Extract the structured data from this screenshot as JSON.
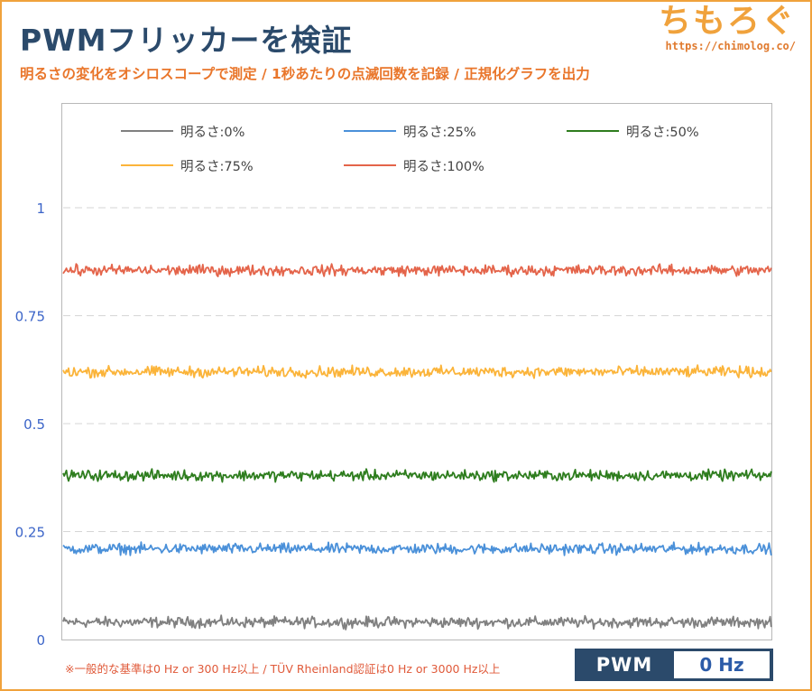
{
  "header": {
    "title": "PWMフリッカーを検証",
    "subtitle": "明るさの変化をオシロスコープで測定 / 1秒あたりの点滅回数を記録 / 正規化グラフを出力"
  },
  "brand": {
    "name": "ちもろぐ",
    "url": "https://chimolog.co/"
  },
  "footnote": "※一般的な基準は0 Hz or 300 Hz以上 / TÜV Rheinland認証は0 Hz or 3000 Hz以上",
  "badge": {
    "label": "PWM",
    "value": "0 Hz"
  },
  "colors": {
    "accent": "#f0a23c",
    "title": "#2b4a6b",
    "subtitle": "#e9762b"
  },
  "chart_data": {
    "type": "line",
    "title": "",
    "xlabel": "",
    "ylabel": "",
    "ylim": [
      0,
      1.1
    ],
    "yticks": [
      0,
      0.25,
      0.5,
      0.75,
      1
    ],
    "ytick_labels": [
      "0",
      "0.25",
      "0.5",
      "0.75",
      "1"
    ],
    "grid": "horizontal dashed",
    "legend_position": "top",
    "series": [
      {
        "name": "明るさ:0%",
        "color": "#808080",
        "level": 0.04,
        "noise": 0.006
      },
      {
        "name": "明るさ:25%",
        "color": "#4a90d9",
        "level": 0.21,
        "noise": 0.006
      },
      {
        "name": "明るさ:50%",
        "color": "#2e7d1e",
        "level": 0.38,
        "noise": 0.006
      },
      {
        "name": "明るさ:75%",
        "color": "#fbb43a",
        "level": 0.62,
        "noise": 0.006
      },
      {
        "name": "明るさ:100%",
        "color": "#e4644a",
        "level": 0.855,
        "noise": 0.006
      }
    ]
  }
}
